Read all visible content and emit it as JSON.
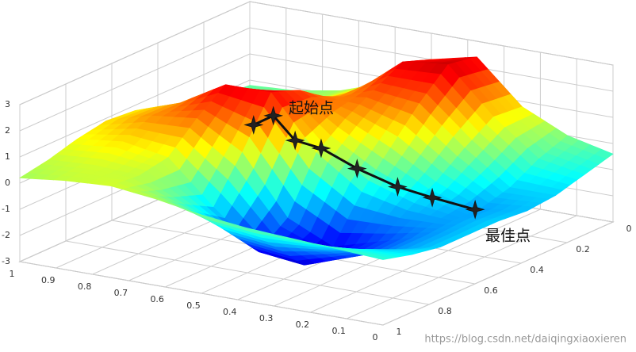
{
  "chart_data": {
    "type": "surface3d",
    "xlim": [
      0,
      1
    ],
    "ylim": [
      0,
      1
    ],
    "zlim": [
      -3,
      3
    ],
    "xticks": [
      0,
      0.1,
      0.2,
      0.3,
      0.4,
      0.5,
      0.6,
      0.7,
      0.8,
      0.9,
      1
    ],
    "yticks": [
      0,
      0.2,
      0.4,
      0.6,
      0.8,
      1
    ],
    "zticks": [
      -3,
      -2,
      -1,
      0,
      1,
      2,
      3
    ],
    "grid": true,
    "colormap": "jet",
    "surface": {
      "x": [
        0,
        0.125,
        0.25,
        0.375,
        0.5,
        0.625,
        0.75,
        0.875,
        1
      ],
      "y": [
        1,
        0.875,
        0.75,
        0.625,
        0.5,
        0.375,
        0.25,
        0.125,
        0
      ],
      "z": [
        [
          -0.5,
          -0.8,
          -1.0,
          -1.0,
          -1.0,
          -1.1,
          -1.0,
          -0.7,
          -0.4
        ],
        [
          -0.4,
          -0.9,
          -1.4,
          -1.4,
          -1.3,
          -1.3,
          -1.0,
          -0.4,
          0.0
        ],
        [
          -0.3,
          -1.2,
          -2.0,
          -1.9,
          -1.2,
          -0.6,
          0.2,
          0.9,
          0.8
        ],
        [
          -0.2,
          -1.4,
          -2.6,
          -2.4,
          -0.8,
          0.4,
          1.6,
          2.6,
          2.4
        ],
        [
          0.0,
          -1.2,
          -2.4,
          -1.6,
          0.4,
          1.2,
          1.8,
          2.4,
          2.0
        ],
        [
          0.3,
          -0.4,
          -1.0,
          0.6,
          2.4,
          2.0,
          1.2,
          1.0,
          0.8
        ],
        [
          0.5,
          0.4,
          0.6,
          1.6,
          2.4,
          1.6,
          0.6,
          0.3,
          0.2
        ],
        [
          0.4,
          0.5,
          0.9,
          1.4,
          1.4,
          0.9,
          0.3,
          0.0,
          -0.1
        ],
        [
          0.2,
          0.4,
          0.7,
          0.9,
          0.8,
          0.5,
          0.1,
          -0.1,
          -0.2
        ]
      ]
    },
    "path": {
      "color": "#111111",
      "x": [
        0.54,
        0.53,
        0.47,
        0.43,
        0.35,
        0.27,
        0.2,
        0.12
      ],
      "y": [
        0.71,
        0.64,
        0.64,
        0.59,
        0.56,
        0.51,
        0.47,
        0.41
      ],
      "z": [
        2.2,
        2.3,
        1.5,
        1.1,
        0.4,
        -0.3,
        -0.7,
        -1.2
      ]
    },
    "annotations": [
      "起始点",
      "最佳点"
    ],
    "watermark": "https://blog.csdn.net/daiqingxiaoxieren"
  }
}
